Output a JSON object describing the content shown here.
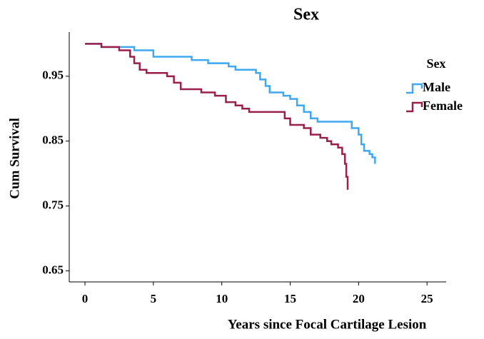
{
  "chart_data": {
    "type": "step",
    "title": "Sex",
    "xlabel": "Years since Focal Cartilage Lesion",
    "ylabel": "Cum Survival",
    "legend_title": "Sex",
    "legend_position": "right",
    "xlim": [
      -1.15,
      26.4
    ],
    "xticks": [
      0,
      5,
      10,
      15,
      20,
      25
    ],
    "ylim": [
      0.633,
      1.018
    ],
    "yticks": [
      0.65,
      0.75,
      0.85,
      0.95
    ],
    "series": [
      {
        "name": "Male",
        "color": "#3ea8f2",
        "x": [
          0,
          1.2,
          3.6,
          5,
          7.8,
          9,
          10.5,
          11,
          12.5,
          12.8,
          13.2,
          13.5,
          14.5,
          15,
          15.5,
          16,
          16.5,
          17,
          19.5,
          20,
          20.2,
          20.4,
          20.8,
          21,
          21.2
        ],
        "values": [
          1.0,
          0.995,
          0.99,
          0.98,
          0.975,
          0.97,
          0.965,
          0.96,
          0.955,
          0.945,
          0.935,
          0.925,
          0.92,
          0.915,
          0.905,
          0.895,
          0.885,
          0.88,
          0.87,
          0.86,
          0.845,
          0.835,
          0.83,
          0.825,
          0.815
        ]
      },
      {
        "name": "Female",
        "color": "#9a1f4b",
        "x": [
          0,
          1.2,
          2.5,
          3.3,
          3.6,
          4,
          4.5,
          6,
          6.5,
          7,
          8.5,
          9.5,
          10.3,
          11,
          11.5,
          12,
          14.6,
          15,
          16,
          16.5,
          17.2,
          17.7,
          18,
          18.5,
          18.8,
          19,
          19.1,
          19.2
        ],
        "values": [
          1.0,
          0.995,
          0.99,
          0.98,
          0.97,
          0.96,
          0.955,
          0.95,
          0.94,
          0.93,
          0.925,
          0.92,
          0.91,
          0.905,
          0.9,
          0.895,
          0.885,
          0.875,
          0.87,
          0.86,
          0.855,
          0.85,
          0.845,
          0.84,
          0.83,
          0.815,
          0.795,
          0.775
        ]
      }
    ]
  }
}
